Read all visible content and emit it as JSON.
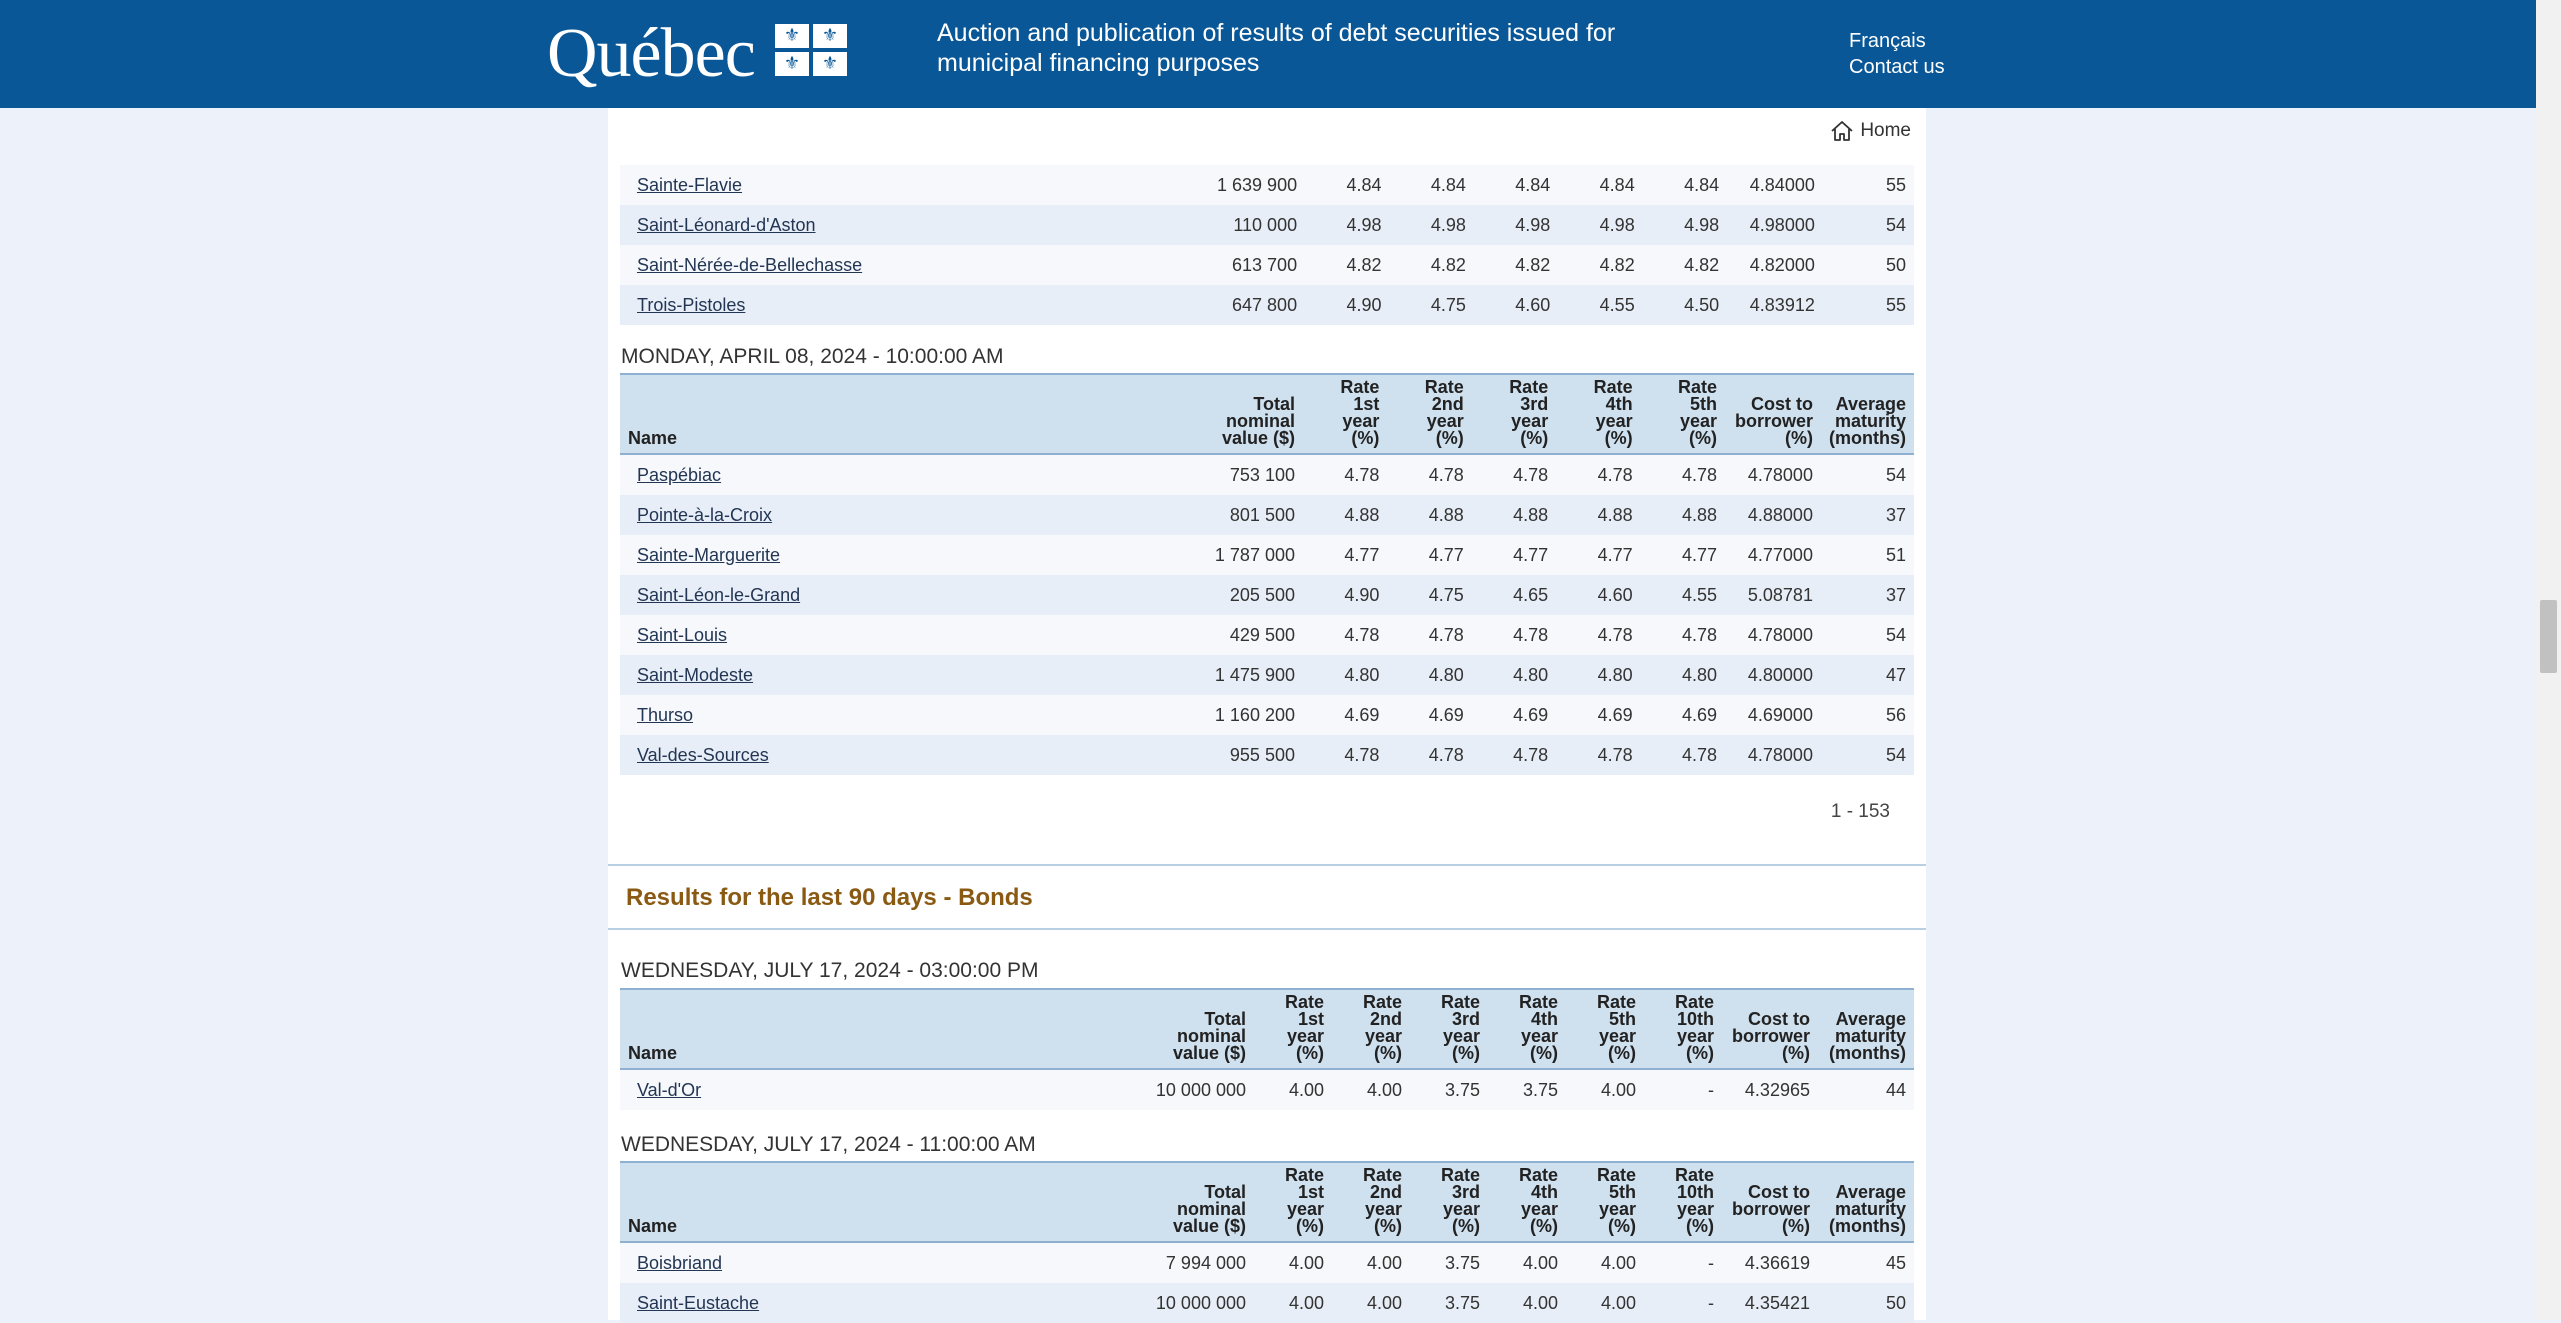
{
  "header": {
    "logo_text": "Québec",
    "site_title": "Auction and publication of results of debt securities issued for municipal financing purposes",
    "links": {
      "francais": "Français",
      "contact": "Contact us"
    },
    "brand_color": "#095797"
  },
  "nav": {
    "home_label": "Home",
    "home_icon": "home-icon"
  },
  "notes_section": {
    "continued_rows": [
      {
        "name": "Sainte-Flavie",
        "total": "1 639 900",
        "r1": "4.84",
        "r2": "4.84",
        "r3": "4.84",
        "r4": "4.84",
        "r5": "4.84",
        "cost": "4.84000",
        "maturity": "55"
      },
      {
        "name": "Saint-Léonard-d'Aston",
        "total": "110 000",
        "r1": "4.98",
        "r2": "4.98",
        "r3": "4.98",
        "r4": "4.98",
        "r5": "4.98",
        "cost": "4.98000",
        "maturity": "54"
      },
      {
        "name": "Saint-Nérée-de-Bellechasse",
        "total": "613 700",
        "r1": "4.82",
        "r2": "4.82",
        "r3": "4.82",
        "r4": "4.82",
        "r5": "4.82",
        "cost": "4.82000",
        "maturity": "50"
      },
      {
        "name": "Trois-Pistoles",
        "total": "647 800",
        "r1": "4.90",
        "r2": "4.75",
        "r3": "4.60",
        "r4": "4.55",
        "r5": "4.50",
        "cost": "4.83912",
        "maturity": "55"
      }
    ],
    "day2": {
      "heading": "MONDAY, APRIL 08, 2024 - 10:00:00 AM",
      "columns": {
        "name": "Name",
        "total": [
          "Total",
          "nominal",
          "value ($)"
        ],
        "r1": [
          "Rate",
          "1st",
          "year",
          "(%)"
        ],
        "r2": [
          "Rate",
          "2nd",
          "year",
          "(%)"
        ],
        "r3": [
          "Rate",
          "3rd",
          "year",
          "(%)"
        ],
        "r4": [
          "Rate",
          "4th",
          "year",
          "(%)"
        ],
        "r5": [
          "Rate",
          "5th",
          "year",
          "(%)"
        ],
        "cost": [
          "Cost to",
          "borrower",
          "(%)"
        ],
        "maturity": [
          "Average",
          "maturity",
          "(months)"
        ]
      },
      "rows": [
        {
          "name": "Paspébiac",
          "total": "753 100",
          "r1": "4.78",
          "r2": "4.78",
          "r3": "4.78",
          "r4": "4.78",
          "r5": "4.78",
          "cost": "4.78000",
          "maturity": "54"
        },
        {
          "name": "Pointe-à-la-Croix",
          "total": "801 500",
          "r1": "4.88",
          "r2": "4.88",
          "r3": "4.88",
          "r4": "4.88",
          "r5": "4.88",
          "cost": "4.88000",
          "maturity": "37"
        },
        {
          "name": "Sainte-Marguerite",
          "total": "1 787 000",
          "r1": "4.77",
          "r2": "4.77",
          "r3": "4.77",
          "r4": "4.77",
          "r5": "4.77",
          "cost": "4.77000",
          "maturity": "51"
        },
        {
          "name": "Saint-Léon-le-Grand",
          "total": "205 500",
          "r1": "4.90",
          "r2": "4.75",
          "r3": "4.65",
          "r4": "4.60",
          "r5": "4.55",
          "cost": "5.08781",
          "maturity": "37"
        },
        {
          "name": "Saint-Louis",
          "total": "429 500",
          "r1": "4.78",
          "r2": "4.78",
          "r3": "4.78",
          "r4": "4.78",
          "r5": "4.78",
          "cost": "4.78000",
          "maturity": "54"
        },
        {
          "name": "Saint-Modeste",
          "total": "1 475 900",
          "r1": "4.80",
          "r2": "4.80",
          "r3": "4.80",
          "r4": "4.80",
          "r5": "4.80",
          "cost": "4.80000",
          "maturity": "47"
        },
        {
          "name": "Thurso",
          "total": "1 160 200",
          "r1": "4.69",
          "r2": "4.69",
          "r3": "4.69",
          "r4": "4.69",
          "r5": "4.69",
          "cost": "4.69000",
          "maturity": "56"
        },
        {
          "name": "Val-des-Sources",
          "total": "955 500",
          "r1": "4.78",
          "r2": "4.78",
          "r3": "4.78",
          "r4": "4.78",
          "r5": "4.78",
          "cost": "4.78000",
          "maturity": "54"
        }
      ]
    },
    "pager": "1 - 153"
  },
  "bonds_section": {
    "heading": "Results for the last 90 days - Bonds",
    "columns": {
      "name": "Name",
      "total": [
        "Total",
        "nominal",
        "value ($)"
      ],
      "r1": [
        "Rate",
        "1st",
        "year",
        "(%)"
      ],
      "r2": [
        "Rate",
        "2nd",
        "year",
        "(%)"
      ],
      "r3": [
        "Rate",
        "3rd",
        "year",
        "(%)"
      ],
      "r4": [
        "Rate",
        "4th",
        "year",
        "(%)"
      ],
      "r5": [
        "Rate",
        "5th",
        "year",
        "(%)"
      ],
      "r10": [
        "Rate",
        "10th",
        "year",
        "(%)"
      ],
      "cost": [
        "Cost to",
        "borrower",
        "(%)"
      ],
      "maturity": [
        "Average",
        "maturity",
        "(months)"
      ]
    },
    "days": [
      {
        "heading": "WEDNESDAY, JULY 17, 2024 - 03:00:00 PM",
        "rows": [
          {
            "name": "Val-d'Or",
            "total": "10 000 000",
            "r1": "4.00",
            "r2": "4.00",
            "r3": "3.75",
            "r4": "3.75",
            "r5": "4.00",
            "r10": "-",
            "cost": "4.32965",
            "maturity": "44"
          }
        ]
      },
      {
        "heading": "WEDNESDAY, JULY 17, 2024 - 11:00:00 AM",
        "rows": [
          {
            "name": "Boisbriand",
            "total": "7 994 000",
            "r1": "4.00",
            "r2": "4.00",
            "r3": "3.75",
            "r4": "4.00",
            "r5": "4.00",
            "r10": "-",
            "cost": "4.36619",
            "maturity": "45"
          },
          {
            "name": "Saint-Eustache",
            "total": "10 000 000",
            "r1": "4.00",
            "r2": "4.00",
            "r3": "3.75",
            "r4": "4.00",
            "r5": "4.00",
            "r10": "-",
            "cost": "4.35421",
            "maturity": "50"
          }
        ]
      }
    ]
  }
}
